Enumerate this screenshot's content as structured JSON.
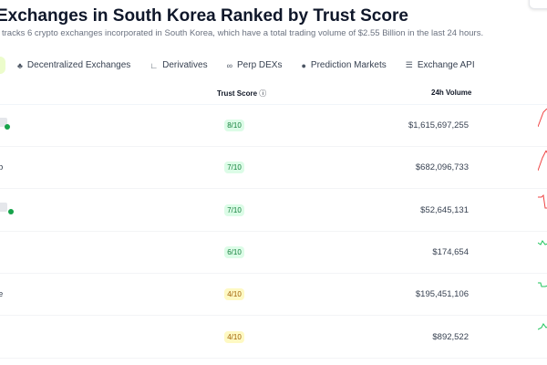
{
  "header": {
    "title": "Exchanges in South Korea Ranked by Trust Score",
    "subtitle": "tracks 6 crypto exchanges incorporated in South Korea, which have a total trading volume of $2.55 Billion in the last 24 hours."
  },
  "tabs": [
    {
      "label": "Decentralized Exchanges",
      "icon": "dex-icon"
    },
    {
      "label": "Derivatives",
      "icon": "chart-icon"
    },
    {
      "label": "Perp DEXs",
      "icon": "infinity-icon"
    },
    {
      "label": "Prediction Markets",
      "icon": "bulb-icon"
    },
    {
      "label": "Exchange API",
      "icon": "database-icon"
    }
  ],
  "table": {
    "columns": {
      "trust": "Trust Score",
      "volume": "24h Volume"
    },
    "rows": [
      {
        "name": "",
        "score": "8/10",
        "volume": "$1,615,697,255",
        "trend": "down"
      },
      {
        "name": "b",
        "score": "7/10",
        "volume": "$682,096,733",
        "trend": "down"
      },
      {
        "name": "",
        "score": "7/10",
        "volume": "$52,645,131",
        "trend": "down"
      },
      {
        "name": "",
        "score": "6/10",
        "volume": "$174,654",
        "trend": "up"
      },
      {
        "name": "e",
        "score": "4/10",
        "volume": "$195,451,106",
        "trend": "up"
      },
      {
        "name": "",
        "score": "4/10",
        "volume": "$892,522",
        "trend": "up"
      }
    ]
  },
  "colors": {
    "green_badge": "#dcfce7",
    "green_text": "#15803d",
    "yellow_badge": "#fef9c3",
    "yellow_text": "#a16207",
    "red": "#ef4444",
    "green": "#22c55e"
  }
}
